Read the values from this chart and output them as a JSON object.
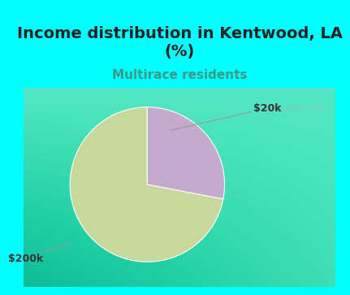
{
  "title": "Income distribution in Kentwood, LA\n(%)",
  "subtitle": "Multirace residents",
  "title_fontsize": 14,
  "subtitle_fontsize": 11,
  "title_color": "#222222",
  "subtitle_color": "#3A9A8A",
  "header_bg": "#00FFFF",
  "chart_bg_color": "#E8F5EE",
  "slices": [
    {
      "label": "$200k",
      "value": 72,
      "color": "#C8D89A"
    },
    {
      "label": "$20k",
      "value": 28,
      "color": "#C4AACC"
    }
  ],
  "watermark": "City-Data.com",
  "watermark_color": "#99BBBB",
  "label_fontsize": 9,
  "startangle": 90
}
